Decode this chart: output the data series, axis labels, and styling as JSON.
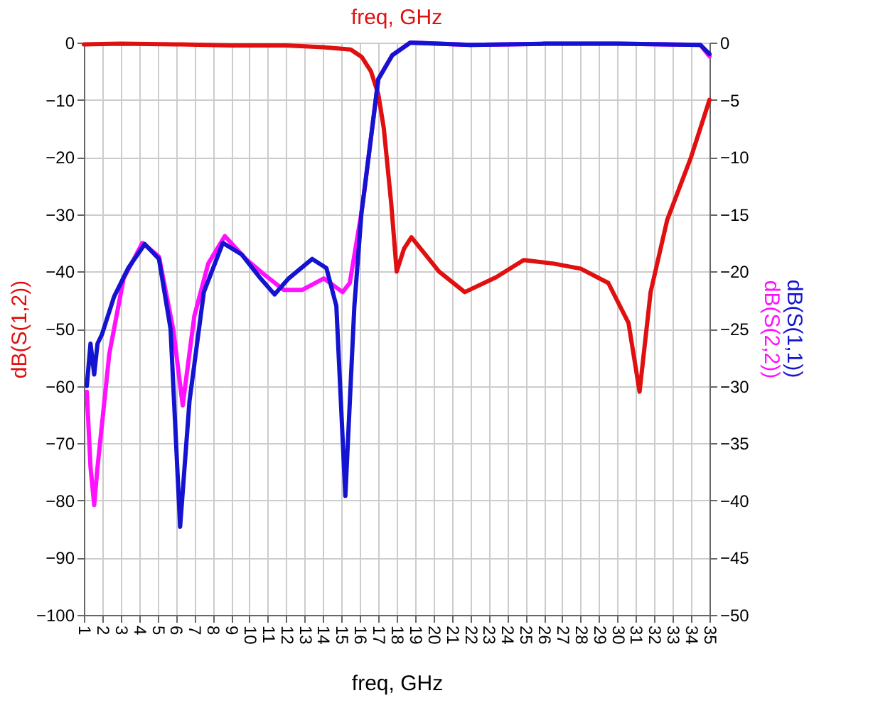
{
  "chart_data": {
    "type": "line",
    "title": "freq, GHz",
    "xlabel": "freq, GHz",
    "ylabel": "dB(S(1,2))",
    "y2label": "dB(S(2,2))",
    "xlim": [
      1,
      35
    ],
    "xticks": [
      1,
      2,
      3,
      4,
      5,
      6,
      7,
      8,
      9,
      10,
      11,
      12,
      13,
      14,
      15,
      16,
      17,
      18,
      19,
      20,
      21,
      22,
      23,
      24,
      25,
      26,
      27,
      28,
      29,
      30,
      31,
      32,
      33,
      34,
      35
    ],
    "ylim": [
      -100,
      0
    ],
    "yticks": [
      -100,
      -90,
      -80,
      -70,
      -60,
      -50,
      -40,
      -30,
      -20,
      -10,
      0
    ],
    "y2lim": [
      -50,
      0
    ],
    "y2ticks": [
      -50,
      -45,
      -40,
      -35,
      -30,
      -25,
      -20,
      -15,
      -10,
      -5,
      0
    ],
    "grid": true,
    "marker": "none",
    "line_style": "solid",
    "series": [
      {
        "color": "#e01010",
        "x": [
          1,
          3,
          6,
          9,
          12,
          14,
          15.5,
          16.1,
          16.6,
          17.0,
          17.3,
          17.7,
          18.0,
          18.4,
          18.8,
          19.3,
          20.3,
          21.7,
          23.4,
          24.9,
          26.5,
          28.0,
          29.5,
          30.6,
          31.2,
          31.8,
          32.7,
          34.0,
          35
        ],
        "values": [
          -0.3,
          -0.2,
          -0.3,
          -0.5,
          -0.5,
          -0.8,
          -1.2,
          -2.5,
          -5,
          -9,
          -15,
          -28,
          -40,
          -36,
          -34,
          -36,
          -40,
          -43.6,
          -41,
          -38,
          -38.6,
          -39.5,
          -42,
          -49,
          -61,
          -43.6,
          -31,
          -20,
          -10
        ]
      },
      {
        "color": "#ff10ff",
        "axis": "y2",
        "x": [
          1.16,
          1.36,
          1.56,
          1.74,
          1.98,
          2.38,
          3.16,
          4.18,
          5.08,
          5.86,
          6.37,
          7.0,
          7.76,
          8.66,
          9.8,
          10.83,
          11.86,
          12.88,
          14.04,
          15.06,
          15.45,
          16.09,
          16.23,
          17.0,
          17.76,
          18.74,
          22,
          26,
          30,
          34.5,
          35
        ],
        "values": [
          -30.5,
          -37.1,
          -40.4,
          -37.1,
          -33.4,
          -27.2,
          -20.6,
          -17.5,
          -18.7,
          -25.1,
          -31.7,
          -23.9,
          -19.3,
          -16.9,
          -18.9,
          -20.3,
          -21.6,
          -21.6,
          -20.6,
          -21.8,
          -21,
          -14.8,
          -13.1,
          -3.2,
          -1.1,
          0,
          -0.2,
          -0.1,
          -0.1,
          -0.2,
          -1.2
        ]
      },
      {
        "name": "dB(S(1,1))",
        "color": "#1414d0",
        "axis": "y2",
        "x": [
          1.16,
          1.36,
          1.56,
          1.74,
          1.98,
          2.64,
          3.41,
          4.31,
          5.08,
          5.71,
          6.23,
          6.74,
          7.52,
          8.55,
          9.57,
          10.6,
          11.36,
          12.13,
          13.41,
          14.18,
          14.72,
          15.21,
          15.7,
          16.09,
          16.23,
          17.0,
          17.76,
          18.74,
          22,
          26,
          30,
          34.5,
          35
        ],
        "values": [
          -30,
          -26.3,
          -29,
          -26.3,
          -25.5,
          -22.2,
          -19.7,
          -17.6,
          -18.9,
          -25,
          -42.3,
          -31.3,
          -21.8,
          -17.5,
          -18.5,
          -20.6,
          -22,
          -20.6,
          -18.9,
          -19.7,
          -23,
          -39.6,
          -23,
          -14.8,
          -13.1,
          -3.2,
          -1.1,
          0,
          -0.2,
          -0.1,
          -0.1,
          -0.2,
          -1.0
        ]
      }
    ]
  }
}
